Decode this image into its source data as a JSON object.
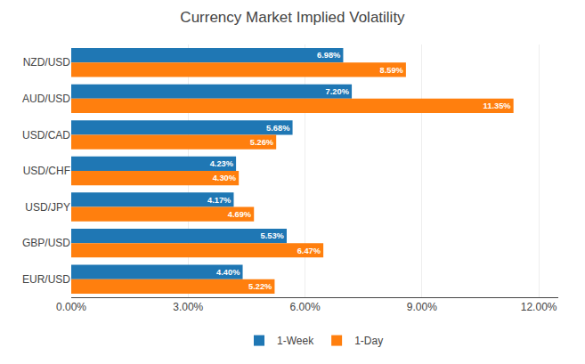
{
  "chart_data": {
    "type": "bar",
    "orientation": "horizontal",
    "title": "Currency Market Implied Volatility",
    "categories": [
      "NZD/USD",
      "AUD/USD",
      "USD/CAD",
      "USD/CHF",
      "USD/JPY",
      "GBP/USD",
      "EUR/USD"
    ],
    "series": [
      {
        "name": "1-Week",
        "values": [
          6.98,
          7.2,
          5.68,
          4.23,
          4.17,
          5.53,
          4.4
        ],
        "value_labels": [
          "6.98%",
          "7.20%",
          "5.68%",
          "4.23%",
          "4.17%",
          "5.53%",
          "4.40%"
        ]
      },
      {
        "name": "1-Day",
        "values": [
          8.59,
          11.35,
          5.26,
          4.3,
          4.69,
          6.47,
          5.22
        ],
        "value_labels": [
          "8.59%",
          "11.35%",
          "5.26%",
          "4.30%",
          "4.69%",
          "6.47%",
          "5.22%"
        ]
      }
    ],
    "xlim": [
      0,
      12.5
    ],
    "xticks": [
      {
        "value": 0,
        "label": "0.00%"
      },
      {
        "value": 3,
        "label": "3.00%"
      },
      {
        "value": 6,
        "label": "6.00%"
      },
      {
        "value": 9,
        "label": "9.00%"
      },
      {
        "value": 12,
        "label": "12.00%"
      }
    ],
    "grid": true,
    "legend": "bottom",
    "data_labels": true
  }
}
